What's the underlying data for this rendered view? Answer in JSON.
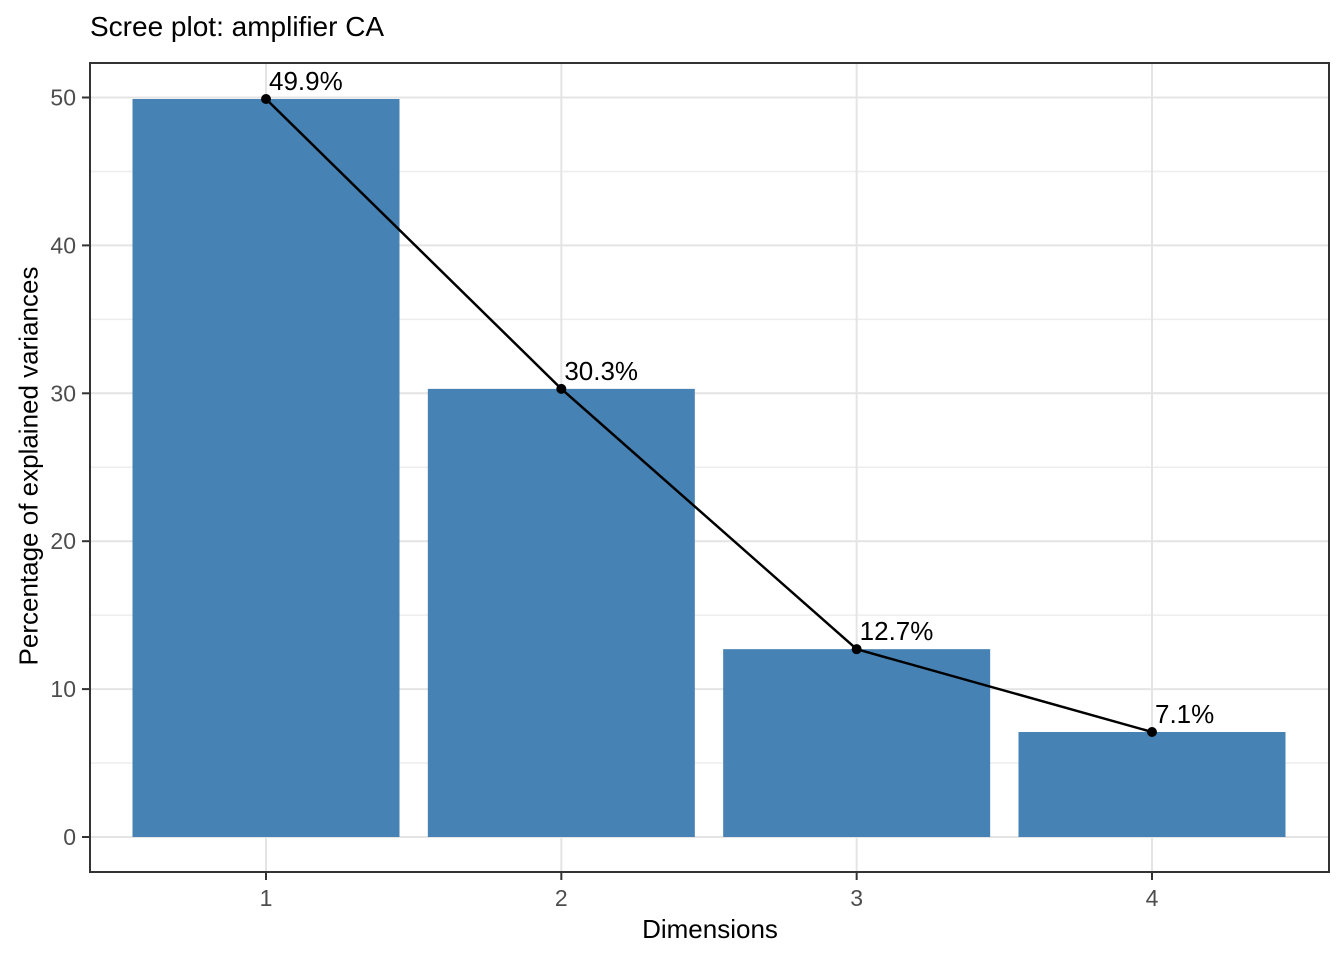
{
  "title": "Scree plot: amplifier CA",
  "chart_data": {
    "type": "bar",
    "overlay": "line+points",
    "title": "Scree plot: amplifier CA",
    "xlabel": "Dimensions",
    "ylabel": "Percentage of explained variances",
    "categories": [
      "1",
      "2",
      "3",
      "4"
    ],
    "values": [
      49.9,
      30.3,
      12.7,
      7.1
    ],
    "point_labels": [
      "49.9%",
      "30.3%",
      "12.7%",
      "7.1%"
    ],
    "y_ticks": [
      0,
      10,
      20,
      30,
      40,
      50
    ],
    "ylim": [
      0,
      50
    ],
    "legend": "none",
    "grid": "major+minor",
    "colors": {
      "bar_fill": "#4682B4",
      "line": "#000000",
      "point": "#000000",
      "grid_major": "#e4e4e4",
      "grid_minor": "#ededed",
      "panel_border": "#333333",
      "tick_mark": "#333333",
      "tick_label": "#4d4d4d",
      "title": "#000000",
      "axis_title": "#000000",
      "background": "#ffffff"
    }
  }
}
